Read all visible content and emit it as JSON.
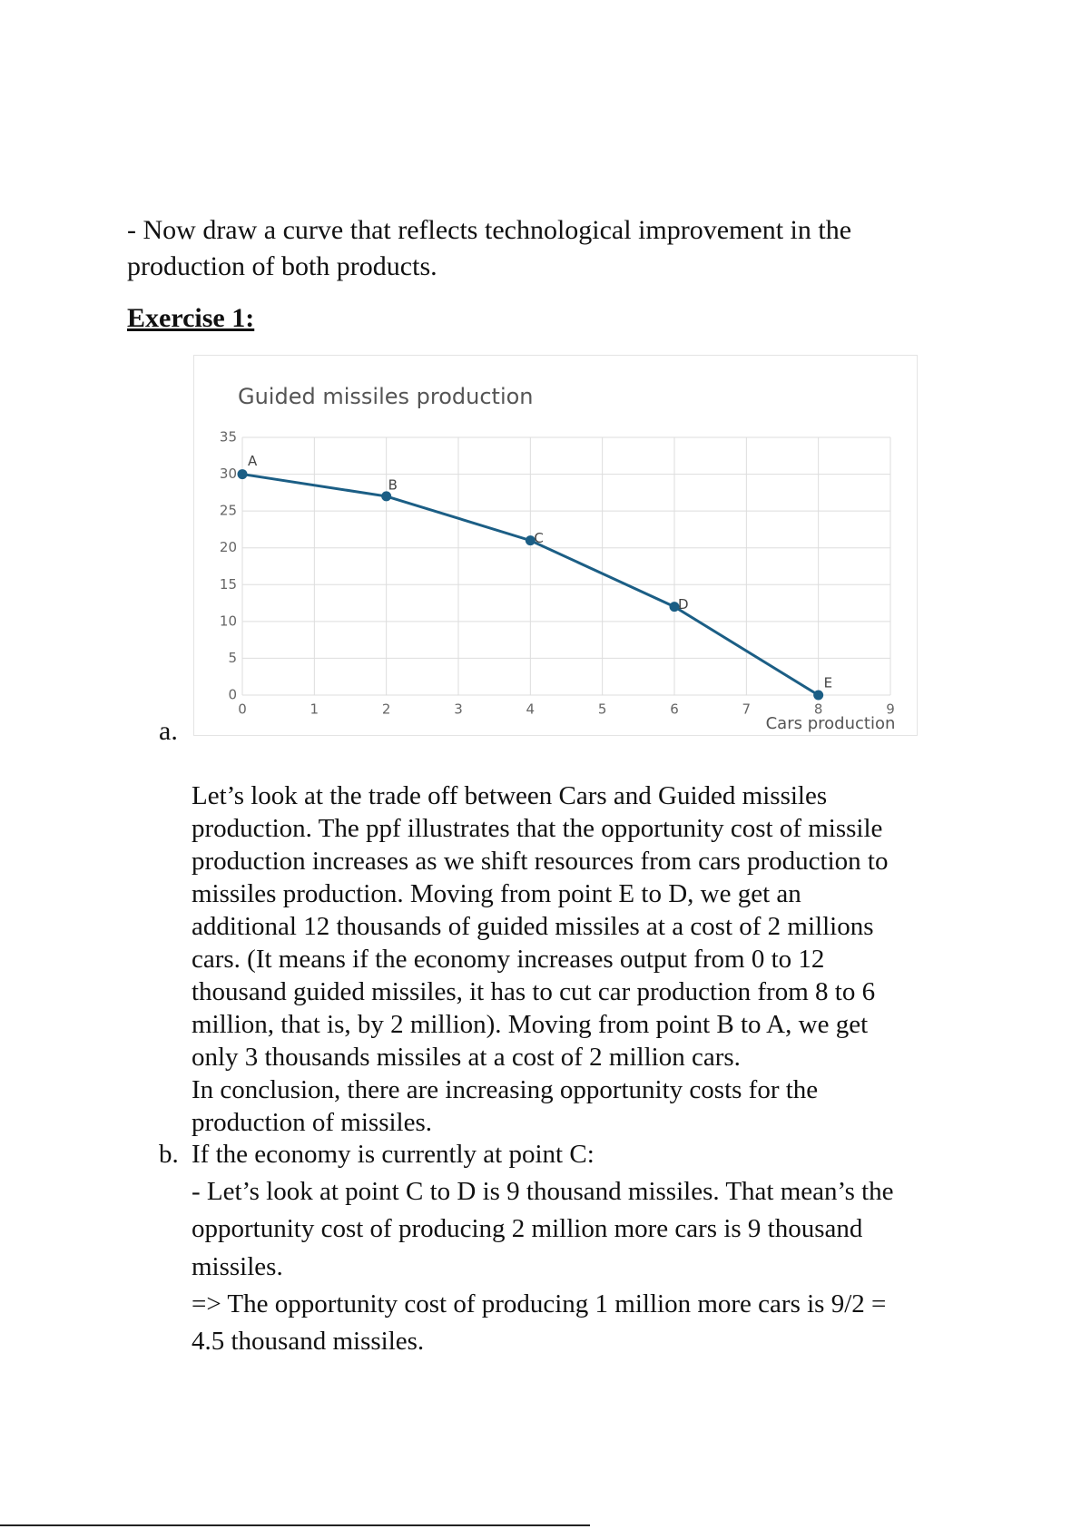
{
  "document": {
    "intro": [
      "- Now draw a curve that reflects technological improvement in the",
      "production of both products."
    ],
    "heading": "Exercise 1:",
    "item_a_marker": "a.",
    "item_a_lines": [
      "Let’s look at the trade off between Cars and Guided missiles",
      "production. The ppf illustrates that the opportunity cost of missile",
      "production increases as we shift resources from cars production to",
      "missiles production. Moving from point E to D, we get an",
      "additional 12 thousands of guided missiles at a cost of 2 millions",
      "cars.  (It means if the economy increases output from 0 to 12",
      "thousand guided missiles, it has to cut car production from 8 to 6",
      "million, that is, by 2 million). Moving from point B to A, we get",
      "only 3 thousands missiles at a cost of 2 million cars.",
      "In conclusion, there are increasing opportunity costs for the",
      "production of missiles."
    ],
    "item_b_marker": "b.",
    "item_b_title": "If the economy is currently at point C:",
    "item_b_lines": [
      "- Let’s look at point C to D is 9 thousand missiles. That mean’s the",
      "opportunity cost of producing 2 million more cars is 9 thousand",
      "missiles.",
      "=> The opportunity cost of producing 1 million more cars is 9/2 =",
      "4.5 thousand missiles."
    ]
  },
  "chart_data": {
    "type": "line",
    "title": "Guided missiles production",
    "x_label": "Cars production",
    "x": [
      0,
      2,
      4,
      6,
      8
    ],
    "values": [
      30,
      27,
      21,
      12,
      0
    ],
    "point_labels": [
      "A",
      "B",
      "C",
      "D",
      "E"
    ],
    "color": "#1b5e85",
    "xlim": [
      0,
      9
    ],
    "ylim": [
      0,
      35
    ],
    "xticks": [
      0,
      1,
      2,
      3,
      4,
      5,
      6,
      7,
      8,
      9
    ],
    "yticks": [
      0,
      5,
      10,
      15,
      20,
      25,
      30,
      35
    ],
    "grid": true
  }
}
